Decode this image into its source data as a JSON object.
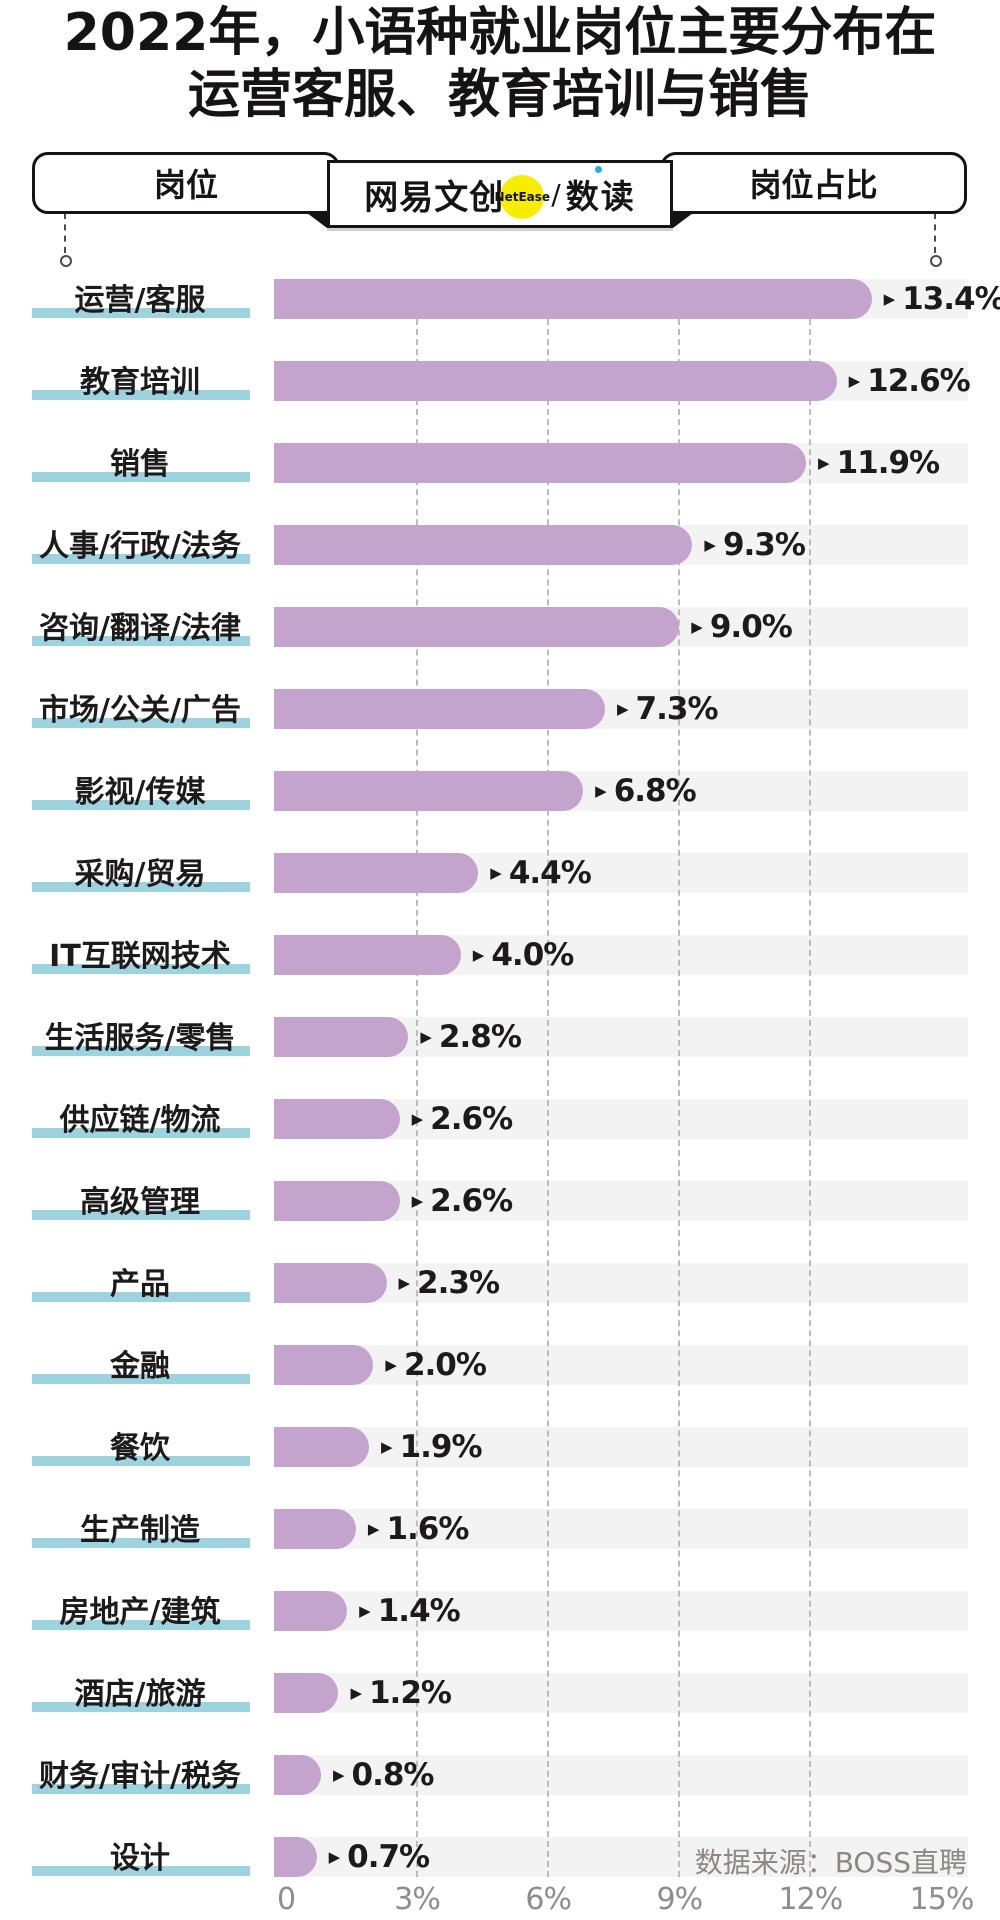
{
  "title": {
    "line1": "2022年，小语种就业岗位主要分布在",
    "line2": "运营客服、教育培训与销售"
  },
  "header": {
    "left_box_label": "岗位",
    "right_box_label": "岗位占比",
    "logo": {
      "brand": "网易文创",
      "badge": "NetEase",
      "divider": "/",
      "product": "数读"
    }
  },
  "source_note": "数据来源：BOSS直聘",
  "colors": {
    "bar": "#c3a4cc",
    "track": "#f4f3f4",
    "label_underline": "#9cd3de",
    "grid": "#bdbbbd",
    "axis_text": "#8f8c8d",
    "badge_yellow": "#f6ed00",
    "badge_blue_dot": "#2fa9dc",
    "ink": "#161314"
  },
  "chart_data": {
    "type": "bar",
    "orientation": "horizontal",
    "unit": "%",
    "marker": "▶",
    "xlim": [
      0,
      15
    ],
    "x_ticks": [
      "0",
      "3%",
      "6%",
      "9%",
      "12%",
      "15%"
    ],
    "gridlines_pct": [
      3,
      6,
      9,
      12
    ],
    "grid": true,
    "categories": [
      "运营/客服",
      "教育培训",
      "销售",
      "人事/行政/法务",
      "咨询/翻译/法律",
      "市场/公关/广告",
      "影视/传媒",
      "采购/贸易",
      "IT互联网技术",
      "生活服务/零售",
      "供应链/物流",
      "高级管理",
      "产品",
      "金融",
      "餐饮",
      "生产制造",
      "房地产/建筑",
      "酒店/旅游",
      "财务/审计/税务",
      "设计"
    ],
    "values": [
      13.4,
      12.6,
      11.9,
      9.3,
      9.0,
      7.3,
      6.8,
      4.4,
      4.0,
      2.8,
      2.6,
      2.6,
      2.3,
      2.0,
      1.9,
      1.6,
      1.4,
      1.2,
      0.8,
      0.7
    ],
    "value_labels": [
      "13.4%",
      "12.6%",
      "11.9%",
      "9.3%",
      "9.0%",
      "7.3%",
      "6.8%",
      "4.4%",
      "4.0%",
      "2.8%",
      "2.6%",
      "2.6%",
      "2.3%",
      "2.0%",
      "1.9%",
      "1.6%",
      "1.4%",
      "1.2%",
      "0.8%",
      "0.7%"
    ]
  }
}
